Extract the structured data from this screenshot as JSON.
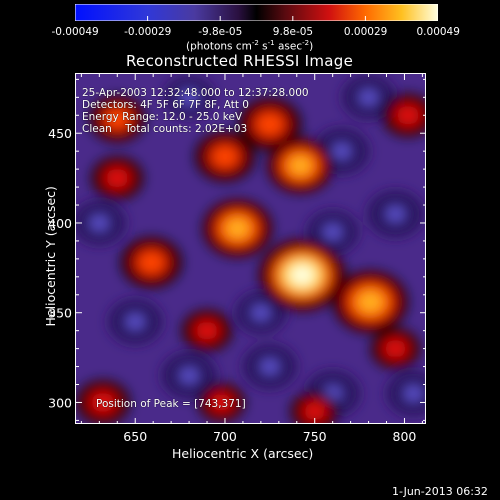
{
  "colorbar": {
    "ticks": [
      "-0.00049",
      "-0.00029",
      "-9.8e-05",
      "9.8e-05",
      "0.00029",
      "0.00049"
    ],
    "unit_label": "(photons cm",
    "unit_exp1": "-2",
    "unit_mid": " s",
    "unit_exp2": "-1",
    "unit_mid2": " asec",
    "unit_exp3": "-2",
    "unit_end": ")"
  },
  "chart_data": {
    "type": "heatmap",
    "title": "Reconstructed RHESSI Image",
    "xlabel": "Heliocentric X (arcsec)",
    "ylabel": "Heliocentric Y (arcsec)",
    "xlim": [
      617,
      812
    ],
    "ylim": [
      288,
      483
    ],
    "xticks": [
      650,
      700,
      750,
      800
    ],
    "yticks": [
      300,
      350,
      400,
      450
    ],
    "colorbar_range": [
      -0.00049,
      0.00049
    ],
    "annotations": [
      "25-Apr-2003 12:32:48.000 to 12:37:28.000",
      "Detectors: 4F 5F 6F 7F 8F, Att 0",
      "Energy Range: 12.0 - 25.0 keV",
      "Clean    Total counts: 2.02E+03"
    ],
    "peak_label": "Position of Peak = [743,371]",
    "peak": [
      743,
      371
    ],
    "sources": [
      {
        "x": 743,
        "y": 371,
        "amp": 1.0
      },
      {
        "x": 781,
        "y": 356,
        "amp": 0.78
      },
      {
        "x": 707,
        "y": 397,
        "amp": 0.68
      },
      {
        "x": 742,
        "y": 432,
        "amp": 0.62
      },
      {
        "x": 725,
        "y": 455,
        "amp": 0.55
      },
      {
        "x": 700,
        "y": 437,
        "amp": 0.5
      },
      {
        "x": 659,
        "y": 378,
        "amp": 0.52
      },
      {
        "x": 640,
        "y": 458,
        "amp": 0.42
      },
      {
        "x": 640,
        "y": 425,
        "amp": 0.35
      },
      {
        "x": 690,
        "y": 340,
        "amp": 0.32
      },
      {
        "x": 632,
        "y": 300,
        "amp": 0.38
      },
      {
        "x": 802,
        "y": 460,
        "amp": 0.35
      },
      {
        "x": 795,
        "y": 330,
        "amp": 0.3
      },
      {
        "x": 750,
        "y": 295,
        "amp": 0.28
      },
      {
        "x": 698,
        "y": 300,
        "amp": 0.25
      }
    ],
    "negatives": [
      {
        "x": 680,
        "y": 315,
        "amp": -0.5
      },
      {
        "x": 765,
        "y": 440,
        "amp": -0.5
      },
      {
        "x": 795,
        "y": 405,
        "amp": -0.55
      },
      {
        "x": 650,
        "y": 345,
        "amp": -0.45
      },
      {
        "x": 725,
        "y": 320,
        "amp": -0.45
      },
      {
        "x": 760,
        "y": 305,
        "amp": -0.5
      },
      {
        "x": 805,
        "y": 305,
        "amp": -0.45
      },
      {
        "x": 630,
        "y": 400,
        "amp": -0.4
      },
      {
        "x": 760,
        "y": 395,
        "amp": -0.35
      },
      {
        "x": 780,
        "y": 470,
        "amp": -0.4
      },
      {
        "x": 680,
        "y": 470,
        "amp": -0.3
      },
      {
        "x": 720,
        "y": 350,
        "amp": -0.3
      }
    ]
  },
  "footer_date": "1-Jun-2013 06:32"
}
